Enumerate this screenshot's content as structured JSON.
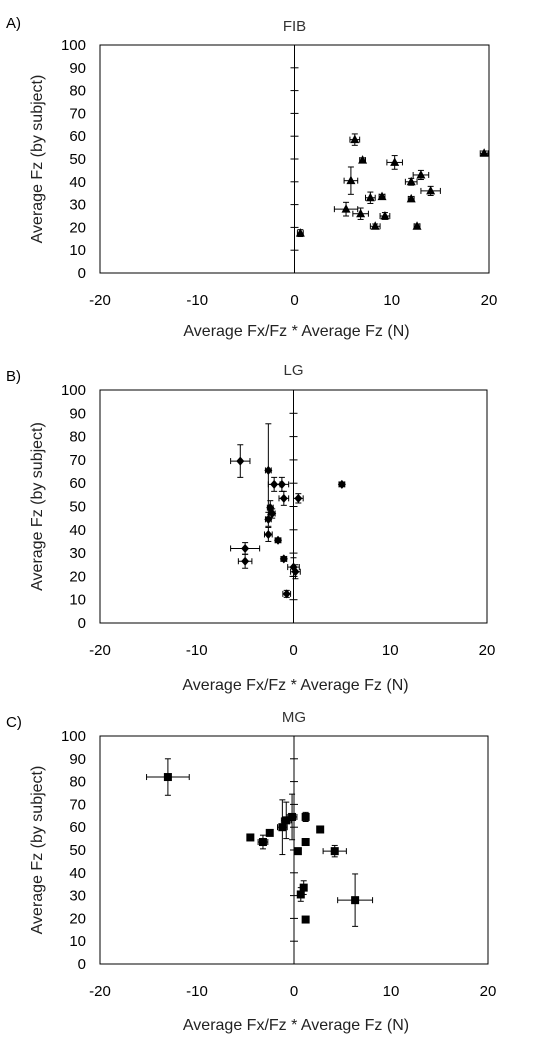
{
  "chart_data": [
    {
      "type": "scatter",
      "panel_label": "A)",
      "title": "FIB",
      "xlabel": "Average Fx/Fz * Average Fz (N)",
      "ylabel": "Average Fz (by subject)",
      "xlim": [
        -20,
        20
      ],
      "ylim": [
        0,
        100
      ],
      "xticks": [
        "-20",
        "-10",
        "0",
        "10",
        "20"
      ],
      "yticks": [
        "0",
        "10",
        "20",
        "30",
        "40",
        "50",
        "60",
        "70",
        "80",
        "90",
        "100"
      ],
      "grid": false,
      "series": [
        {
          "marker": "triangle",
          "points": [
            {
              "x": 6.2,
              "y": 58.5,
              "xerr": 0.5,
              "yerr": 2.5
            },
            {
              "x": 7.0,
              "y": 49.5,
              "xerr": 0.3,
              "yerr": 1.0
            },
            {
              "x": 10.3,
              "y": 48.5,
              "xerr": 0.8,
              "yerr": 3.0
            },
            {
              "x": 13.0,
              "y": 43.0,
              "xerr": 0.8,
              "yerr": 2.0
            },
            {
              "x": 5.8,
              "y": 40.5,
              "xerr": 0.7,
              "yerr": 6.0
            },
            {
              "x": 12.0,
              "y": 40.0,
              "xerr": 0.6,
              "yerr": 1.5
            },
            {
              "x": 14.0,
              "y": 36.0,
              "xerr": 1.0,
              "yerr": 2.0
            },
            {
              "x": 9.0,
              "y": 33.5,
              "xerr": 0.3,
              "yerr": 1.0
            },
            {
              "x": 7.8,
              "y": 33.0,
              "xerr": 0.5,
              "yerr": 2.5
            },
            {
              "x": 12.0,
              "y": 32.5,
              "xerr": 0.3,
              "yerr": 1.0
            },
            {
              "x": 5.3,
              "y": 28.0,
              "xerr": 1.2,
              "yerr": 3.0
            },
            {
              "x": 6.8,
              "y": 26.0,
              "xerr": 0.8,
              "yerr": 2.5
            },
            {
              "x": 9.3,
              "y": 25.0,
              "xerr": 0.5,
              "yerr": 1.5
            },
            {
              "x": 8.3,
              "y": 20.5,
              "xerr": 0.5,
              "yerr": 1.0
            },
            {
              "x": 12.6,
              "y": 20.5,
              "xerr": 0.3,
              "yerr": 1.0
            },
            {
              "x": 19.5,
              "y": 52.5,
              "xerr": 0.4,
              "yerr": 1.0
            },
            {
              "x": 0.6,
              "y": 17.5,
              "xerr": 0.3,
              "yerr": 1.5
            }
          ]
        }
      ]
    },
    {
      "type": "scatter",
      "panel_label": "B)",
      "title": "LG",
      "xlabel": "Average Fx/Fz * Average Fz (N)",
      "ylabel": "Average Fz (by subject)",
      "xlim": [
        -20,
        20
      ],
      "ylim": [
        0,
        100
      ],
      "xticks": [
        "-20",
        "-10",
        "0",
        "10",
        "20"
      ],
      "yticks": [
        "0",
        "10",
        "20",
        "30",
        "40",
        "50",
        "60",
        "70",
        "80",
        "90",
        "100"
      ],
      "grid": false,
      "series": [
        {
          "marker": "diamond",
          "points": [
            {
              "x": -5.5,
              "y": 69.5,
              "xerr": 1.0,
              "yerr": 7.0
            },
            {
              "x": -2.6,
              "y": 65.5,
              "xerr": 0.3,
              "yerr": 20.0
            },
            {
              "x": -2.0,
              "y": 59.5,
              "xerr": 0.6,
              "yerr": 3.0
            },
            {
              "x": -1.2,
              "y": 59.5,
              "xerr": 0.7,
              "yerr": 3.0
            },
            {
              "x": -1.0,
              "y": 53.5,
              "xerr": 0.5,
              "yerr": 3.0
            },
            {
              "x": 0.5,
              "y": 53.5,
              "xerr": 0.5,
              "yerr": 2.0
            },
            {
              "x": -2.4,
              "y": 49.5,
              "xerr": 0.3,
              "yerr": 3.0
            },
            {
              "x": -2.2,
              "y": 47.0,
              "xerr": 0.3,
              "yerr": 2.0
            },
            {
              "x": -2.6,
              "y": 44.5,
              "xerr": 0.3,
              "yerr": 3.0
            },
            {
              "x": -2.6,
              "y": 38.0,
              "xerr": 0.4,
              "yerr": 3.0
            },
            {
              "x": -1.6,
              "y": 35.5,
              "xerr": 0.3,
              "yerr": 1.0
            },
            {
              "x": -5.0,
              "y": 32.0,
              "xerr": 1.5,
              "yerr": 2.5
            },
            {
              "x": -5.0,
              "y": 26.5,
              "xerr": 0.7,
              "yerr": 3.0
            },
            {
              "x": -1.0,
              "y": 27.5,
              "xerr": 0.3,
              "yerr": 1.0
            },
            {
              "x": 0.0,
              "y": 24.0,
              "xerr": 0.6,
              "yerr": 4.0
            },
            {
              "x": 0.2,
              "y": 22.0,
              "xerr": 0.5,
              "yerr": 3.0
            },
            {
              "x": -0.7,
              "y": 12.5,
              "xerr": 0.4,
              "yerr": 1.5
            },
            {
              "x": 5.0,
              "y": 59.5,
              "xerr": 0.3,
              "yerr": 1.0
            }
          ]
        }
      ]
    },
    {
      "type": "scatter",
      "panel_label": "C)",
      "title": "MG",
      "xlabel": "Average Fx/Fz * Average Fz (N)",
      "ylabel": "Average Fz (by subject)",
      "xlim": [
        -20,
        20
      ],
      "ylim": [
        0,
        100
      ],
      "xticks": [
        "-20",
        "-10",
        "0",
        "10",
        "20"
      ],
      "yticks": [
        "0",
        "10",
        "20",
        "30",
        "40",
        "50",
        "60",
        "70",
        "80",
        "90",
        "100"
      ],
      "grid": false,
      "series": [
        {
          "marker": "square",
          "points": [
            {
              "x": -13.0,
              "y": 82.0,
              "xerr": 2.2,
              "yerr": 8.0
            },
            {
              "x": -4.5,
              "y": 55.5,
              "xerr": 0.3,
              "yerr": 1.0
            },
            {
              "x": -3.2,
              "y": 53.5,
              "xerr": 0.5,
              "yerr": 3.0
            },
            {
              "x": -2.5,
              "y": 57.5,
              "xerr": 0.3,
              "yerr": 1.0
            },
            {
              "x": -1.2,
              "y": 60.0,
              "xerr": 0.5,
              "yerr": 12.0
            },
            {
              "x": -0.8,
              "y": 63.0,
              "xerr": 0.5,
              "yerr": 8.0
            },
            {
              "x": -0.2,
              "y": 64.5,
              "xerr": 0.5,
              "yerr": 10.0
            },
            {
              "x": 1.2,
              "y": 64.5,
              "xerr": 0.3,
              "yerr": 2.0
            },
            {
              "x": 2.7,
              "y": 59.0,
              "xerr": 0.3,
              "yerr": 1.0
            },
            {
              "x": 1.2,
              "y": 53.5,
              "xerr": 0.3,
              "yerr": 1.5
            },
            {
              "x": 0.4,
              "y": 49.5,
              "xerr": 0.3,
              "yerr": 1.0
            },
            {
              "x": 4.2,
              "y": 49.5,
              "xerr": 1.2,
              "yerr": 2.5
            },
            {
              "x": 1.0,
              "y": 33.5,
              "xerr": 0.3,
              "yerr": 3.0
            },
            {
              "x": 0.7,
              "y": 30.5,
              "xerr": 0.3,
              "yerr": 3.0
            },
            {
              "x": 6.3,
              "y": 28.0,
              "xerr": 1.8,
              "yerr": 11.5
            },
            {
              "x": 1.2,
              "y": 19.5,
              "xerr": 0.3,
              "yerr": 1.0
            }
          ]
        }
      ]
    }
  ]
}
